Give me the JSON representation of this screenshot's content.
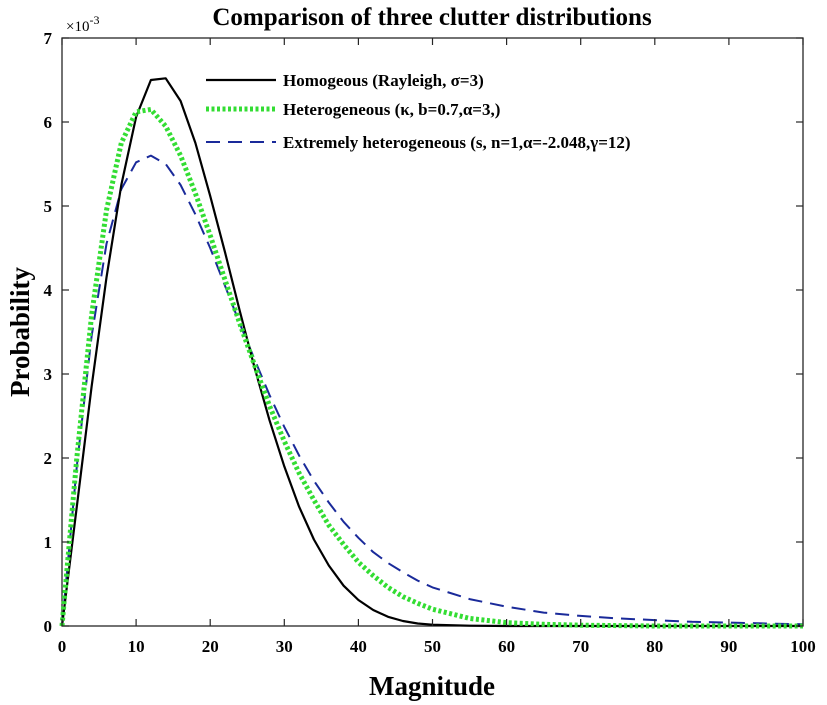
{
  "chart_data": {
    "type": "line",
    "title": "Comparison of three clutter distributions",
    "xlabel": "Magnitude",
    "ylabel": "Probability",
    "y_multiplier": "×10-3",
    "xlim": [
      0,
      100
    ],
    "ylim": [
      0,
      7
    ],
    "xticks": [
      "0",
      "10",
      "20",
      "30",
      "40",
      "50",
      "60",
      "70",
      "80",
      "90",
      "100"
    ],
    "yticks": [
      "0",
      "1",
      "2",
      "3",
      "4",
      "5",
      "6",
      "7"
    ],
    "grid": false,
    "legend_position": "top-right",
    "x": [
      0,
      2,
      4,
      6,
      8,
      10,
      12,
      14,
      16,
      18,
      20,
      22,
      24,
      26,
      28,
      30,
      32,
      34,
      36,
      38,
      40,
      42,
      44,
      46,
      48,
      50,
      55,
      60,
      65,
      70,
      75,
      80,
      85,
      90,
      95,
      100
    ],
    "series": [
      {
        "name": "Homogeous (Rayleigh, σ=3)",
        "color": "#000000",
        "style": "solid",
        "values": [
          0,
          1.42,
          2.85,
          4.15,
          5.25,
          6.06,
          6.5,
          6.52,
          6.25,
          5.75,
          5.12,
          4.45,
          3.75,
          3.07,
          2.45,
          1.9,
          1.42,
          1.03,
          0.72,
          0.48,
          0.31,
          0.19,
          0.11,
          0.06,
          0.03,
          0.015,
          0.004,
          0,
          0,
          0,
          0,
          0,
          0,
          0,
          0,
          0
        ]
      },
      {
        "name": "Heterogeneous (κ, b=0.7,α=3,)",
        "color": "#33dd33",
        "style": "dotted",
        "values": [
          0,
          2.0,
          3.7,
          4.95,
          5.75,
          6.12,
          6.15,
          5.95,
          5.6,
          5.15,
          4.65,
          4.12,
          3.6,
          3.1,
          2.62,
          2.2,
          1.82,
          1.5,
          1.2,
          0.97,
          0.76,
          0.6,
          0.46,
          0.35,
          0.27,
          0.2,
          0.09,
          0.04,
          0.02,
          0.01,
          0.005,
          0,
          0,
          0,
          0,
          0
        ]
      },
      {
        "name": "Extremely heterogeneous (s, n=1,α=-2.048,γ=12)",
        "color": "#1a2a9a",
        "style": "dashed",
        "values": [
          0,
          1.9,
          3.45,
          4.55,
          5.2,
          5.52,
          5.6,
          5.5,
          5.25,
          4.9,
          4.5,
          4.05,
          3.6,
          3.17,
          2.75,
          2.37,
          2.03,
          1.73,
          1.47,
          1.24,
          1.05,
          0.88,
          0.75,
          0.64,
          0.54,
          0.46,
          0.32,
          0.23,
          0.16,
          0.12,
          0.09,
          0.07,
          0.05,
          0.04,
          0.03,
          0.02
        ]
      }
    ]
  }
}
